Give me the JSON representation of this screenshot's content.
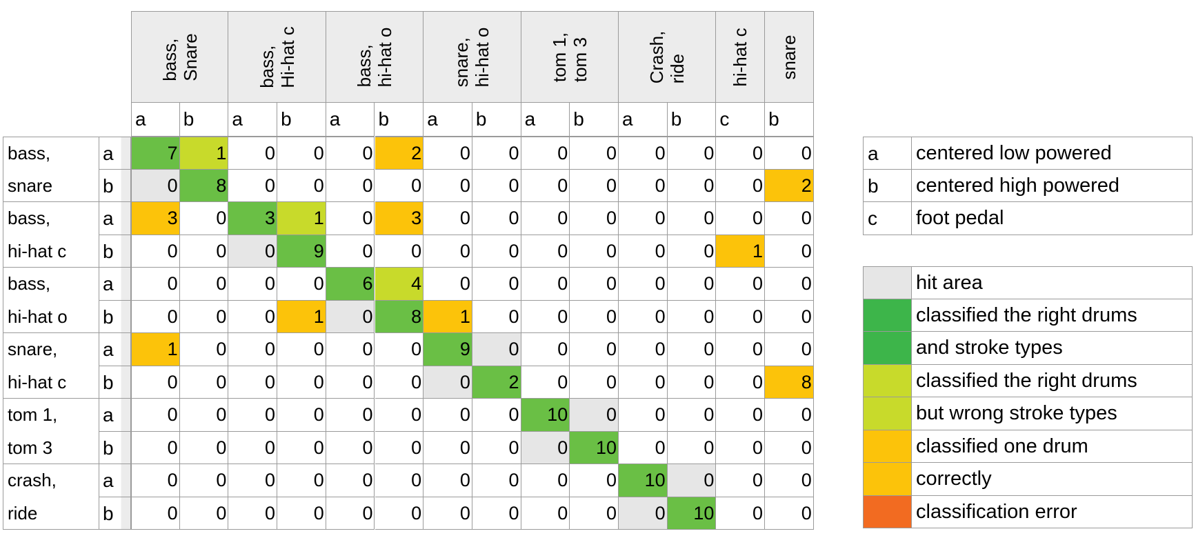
{
  "chart_data": {
    "type": "table",
    "title": "",
    "column_groups": [
      {
        "label": "bass,\nSnare",
        "subs": [
          "a",
          "b"
        ]
      },
      {
        "label": "bass,\nHi-hat c",
        "subs": [
          "a",
          "b"
        ]
      },
      {
        "label": "bass,\nhi-hat o",
        "subs": [
          "a",
          "b"
        ]
      },
      {
        "label": "snare,\nhi-hat o",
        "subs": [
          "a",
          "b"
        ]
      },
      {
        "label": "tom 1,\ntom 3",
        "subs": [
          "a",
          "b"
        ]
      },
      {
        "label": "Crash,\nride",
        "subs": [
          "a",
          "b"
        ]
      },
      {
        "label": "hi-hat c",
        "subs": [
          "c"
        ]
      },
      {
        "label": "snare",
        "subs": [
          "b"
        ]
      }
    ],
    "rows": [
      {
        "label": "bass,",
        "sub": "a",
        "values": [
          7,
          1,
          0,
          0,
          0,
          2,
          0,
          0,
          0,
          0,
          0,
          0,
          0,
          0
        ]
      },
      {
        "label": "snare",
        "sub": "b",
        "values": [
          0,
          8,
          0,
          0,
          0,
          0,
          0,
          0,
          0,
          0,
          0,
          0,
          0,
          2
        ]
      },
      {
        "label": "bass,",
        "sub": "a",
        "values": [
          3,
          0,
          3,
          1,
          0,
          3,
          0,
          0,
          0,
          0,
          0,
          0,
          0,
          0
        ]
      },
      {
        "label": "hi-hat c",
        "sub": "b",
        "values": [
          0,
          0,
          0,
          9,
          0,
          0,
          0,
          0,
          0,
          0,
          0,
          0,
          1,
          0
        ]
      },
      {
        "label": "bass,",
        "sub": "a",
        "values": [
          0,
          0,
          0,
          0,
          6,
          4,
          0,
          0,
          0,
          0,
          0,
          0,
          0,
          0
        ]
      },
      {
        "label": "hi-hat o",
        "sub": "b",
        "values": [
          0,
          0,
          0,
          1,
          0,
          8,
          1,
          0,
          0,
          0,
          0,
          0,
          0,
          0
        ]
      },
      {
        "label": "snare,",
        "sub": "a",
        "values": [
          1,
          0,
          0,
          0,
          0,
          0,
          9,
          0,
          0,
          0,
          0,
          0,
          0,
          0
        ]
      },
      {
        "label": "hi-hat c",
        "sub": "b",
        "values": [
          0,
          0,
          0,
          0,
          0,
          0,
          0,
          2,
          0,
          0,
          0,
          0,
          0,
          8
        ]
      },
      {
        "label": "tom 1,",
        "sub": "a",
        "values": [
          0,
          0,
          0,
          0,
          0,
          0,
          0,
          0,
          10,
          0,
          0,
          0,
          0,
          0
        ]
      },
      {
        "label": "tom 3",
        "sub": "b",
        "values": [
          0,
          0,
          0,
          0,
          0,
          0,
          0,
          0,
          0,
          10,
          0,
          0,
          0,
          0
        ]
      },
      {
        "label": "crash,",
        "sub": "a",
        "values": [
          0,
          0,
          0,
          0,
          0,
          0,
          0,
          0,
          0,
          0,
          10,
          0,
          0,
          0
        ]
      },
      {
        "label": "ride",
        "sub": "b",
        "values": [
          0,
          0,
          0,
          0,
          0,
          0,
          0,
          0,
          0,
          0,
          0,
          10,
          0,
          0
        ]
      }
    ],
    "cell_categories": [
      [
        "right",
        "right-drum",
        "none",
        "none",
        "none",
        "one-drum",
        "none",
        "none",
        "none",
        "none",
        "none",
        "none",
        "none",
        "none"
      ],
      [
        "hit",
        "right",
        "none",
        "none",
        "none",
        "none",
        "none",
        "none",
        "none",
        "none",
        "none",
        "none",
        "none",
        "one-drum"
      ],
      [
        "one-drum",
        "none",
        "right",
        "right-drum",
        "none",
        "one-drum",
        "none",
        "none",
        "none",
        "none",
        "none",
        "none",
        "none",
        "none"
      ],
      [
        "none",
        "none",
        "hit",
        "right",
        "none",
        "none",
        "none",
        "none",
        "none",
        "none",
        "none",
        "none",
        "one-drum",
        "none"
      ],
      [
        "none",
        "none",
        "none",
        "none",
        "right",
        "right-drum",
        "none",
        "none",
        "none",
        "none",
        "none",
        "none",
        "none",
        "none"
      ],
      [
        "none",
        "none",
        "none",
        "one-drum",
        "hit",
        "right",
        "one-drum",
        "none",
        "none",
        "none",
        "none",
        "none",
        "none",
        "none"
      ],
      [
        "one-drum",
        "none",
        "none",
        "none",
        "none",
        "none",
        "right",
        "hit",
        "none",
        "none",
        "none",
        "none",
        "none",
        "none"
      ],
      [
        "none",
        "none",
        "none",
        "none",
        "none",
        "none",
        "hit",
        "right",
        "none",
        "none",
        "none",
        "none",
        "none",
        "one-drum"
      ],
      [
        "none",
        "none",
        "none",
        "none",
        "none",
        "none",
        "none",
        "none",
        "right",
        "hit",
        "none",
        "none",
        "none",
        "none"
      ],
      [
        "none",
        "none",
        "none",
        "none",
        "none",
        "none",
        "none",
        "none",
        "hit",
        "right",
        "none",
        "none",
        "none",
        "none"
      ],
      [
        "none",
        "none",
        "none",
        "none",
        "none",
        "none",
        "none",
        "none",
        "none",
        "none",
        "right",
        "hit",
        "none",
        "none"
      ],
      [
        "none",
        "none",
        "none",
        "none",
        "none",
        "none",
        "none",
        "none",
        "none",
        "none",
        "hit",
        "right",
        "none",
        "none"
      ]
    ]
  },
  "colors": {
    "hit": "#e6e6e6",
    "right": "#6abf45",
    "right-drum": "#c8da2b",
    "one-drum": "#fcc30a",
    "error": "#f26b21",
    "none": "#ffffff",
    "header": "#ececec"
  },
  "legend_keys": [
    {
      "key": "a",
      "text": "centered low powered"
    },
    {
      "key": "b",
      "text": "centered high powered"
    },
    {
      "key": "c",
      "text": "foot pedal"
    }
  ],
  "legend_colors": [
    {
      "color": "#e6e6e6",
      "text": "hit area"
    },
    {
      "color": "#3db54a",
      "text": "classified the right drums"
    },
    {
      "color": "#3db54a",
      "text": "and stroke types"
    },
    {
      "color": "#c8da2b",
      "text": "classified the right drums"
    },
    {
      "color": "#c8da2b",
      "text": "but wrong stroke types"
    },
    {
      "color": "#fcc30a",
      "text": "classified one drum"
    },
    {
      "color": "#fcc30a",
      "text": "correctly"
    },
    {
      "color": "#f26b21",
      "text": "classification error"
    }
  ]
}
